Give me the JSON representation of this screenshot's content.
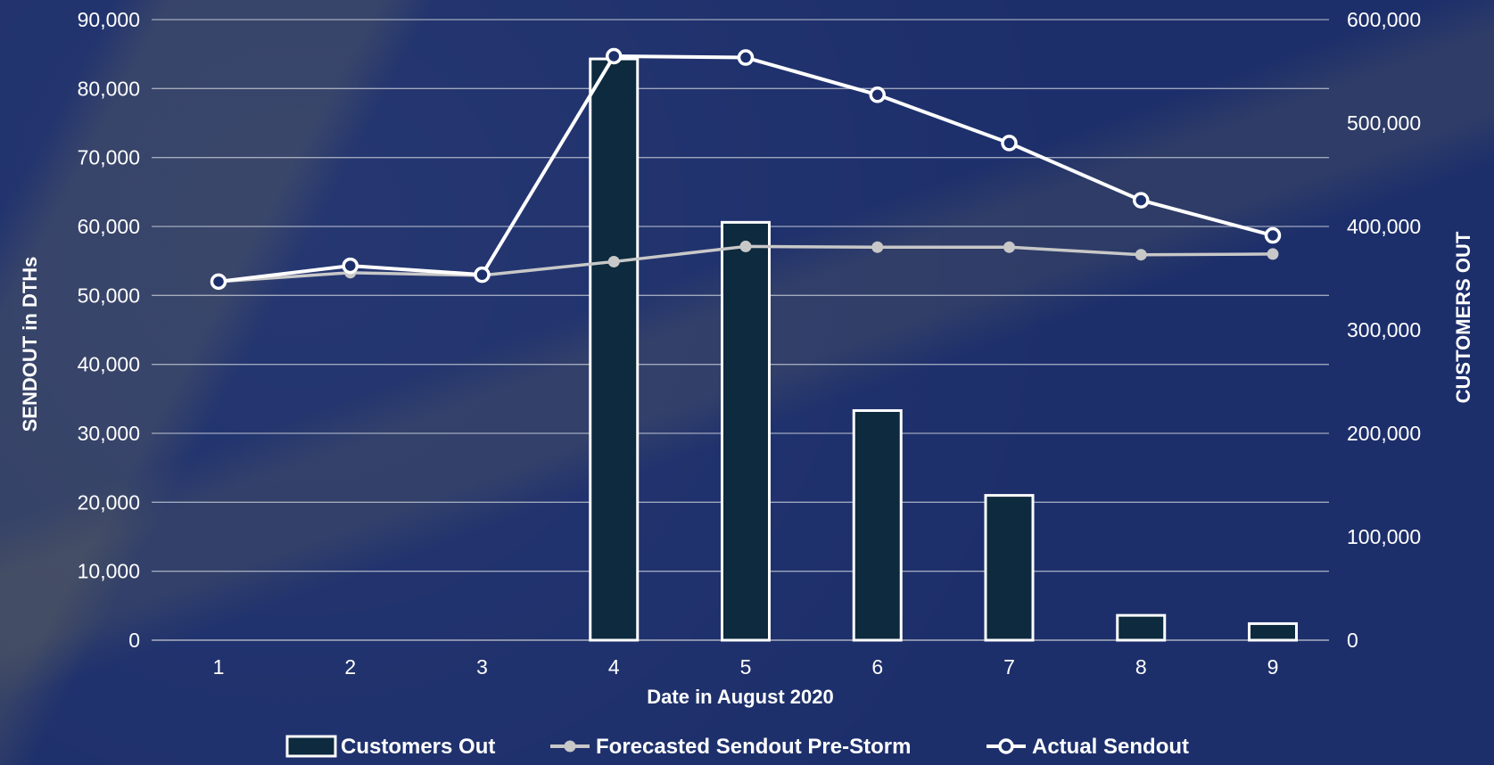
{
  "chart_data": {
    "type": "bar",
    "xlabel": "Date in August 2020",
    "ylabel": "SENDOUT in DTHs",
    "y2label": "CUSTOMERS OUT",
    "categories": [
      "1",
      "2",
      "3",
      "4",
      "5",
      "6",
      "7",
      "8",
      "9"
    ],
    "ylim": [
      0,
      90000
    ],
    "y2lim": [
      0,
      600000
    ],
    "yticks": [
      "0",
      "10,000",
      "20,000",
      "30,000",
      "40,000",
      "50,000",
      "60,000",
      "70,000",
      "80,000",
      "90,000"
    ],
    "y2ticks": [
      "0",
      "100,000",
      "200,000",
      "300,000",
      "400,000",
      "500,000",
      "600,000"
    ],
    "grid": true,
    "legend_position": "bottom",
    "series": [
      {
        "name": "Customers Out",
        "type": "bar",
        "axis": "right",
        "color": "#0d2a3e",
        "values": [
          0,
          0,
          0,
          562000,
          404000,
          222000,
          140000,
          24000,
          16000
        ]
      },
      {
        "name": "Forecasted Sendout Pre-Storm",
        "type": "line",
        "axis": "left",
        "color": "#c8c8c8",
        "values": [
          52000,
          53300,
          52900,
          54900,
          57100,
          57000,
          57000,
          55900,
          56000
        ]
      },
      {
        "name": "Actual Sendout",
        "type": "line",
        "axis": "left",
        "color": "#ffffff",
        "values": [
          52000,
          54300,
          53000,
          84700,
          84500,
          79100,
          72100,
          63800,
          58700
        ]
      }
    ]
  }
}
